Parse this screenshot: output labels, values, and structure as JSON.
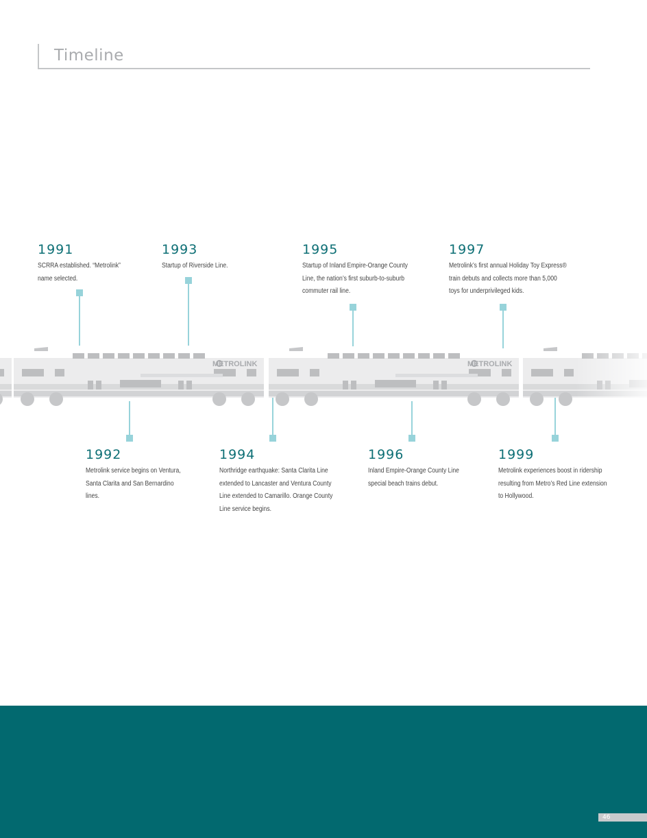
{
  "header": {
    "title": "Timeline"
  },
  "train": {
    "logo_text": "METROLINK"
  },
  "events_top": [
    {
      "year": "1991",
      "desc": "SCRRA established. “Metrolink”\nname selected."
    },
    {
      "year": "1993",
      "desc": "Startup of Riverside Line."
    },
    {
      "year": "1995",
      "desc": "Startup of Inland Empire-Orange County\nLine, the nation’s first suburb-to-suburb\ncommuter rail line."
    },
    {
      "year": "1997",
      "desc": "Metrolink’s first annual Holiday Toy Express®\ntrain debuts and collects more than 5,000\ntoys for underprivileged kids."
    }
  ],
  "events_bottom": [
    {
      "year": "1992",
      "desc": "Metrolink service begins on Ventura,\nSanta Clarita and San Bernardino\nlines."
    },
    {
      "year": "1994",
      "desc": "Northridge earthquake: Santa Clarita Line\nextended to Lancaster and Ventura County\nLine extended to Camarillo. Orange County\nLine service begins."
    },
    {
      "year": "1996",
      "desc": "Inland Empire-Orange County Line\nspecial beach trains debut."
    },
    {
      "year": "1999",
      "desc": "Metrolink experiences boost in ridership\nresulting from Metro’s Red Line extension\nto Hollywood."
    }
  ],
  "footer": {
    "page_number": "46"
  },
  "colors": {
    "teal": "#02696f",
    "year_text": "#0d6f75",
    "connector": "#97d3da",
    "rule": "#c4c6c8"
  }
}
